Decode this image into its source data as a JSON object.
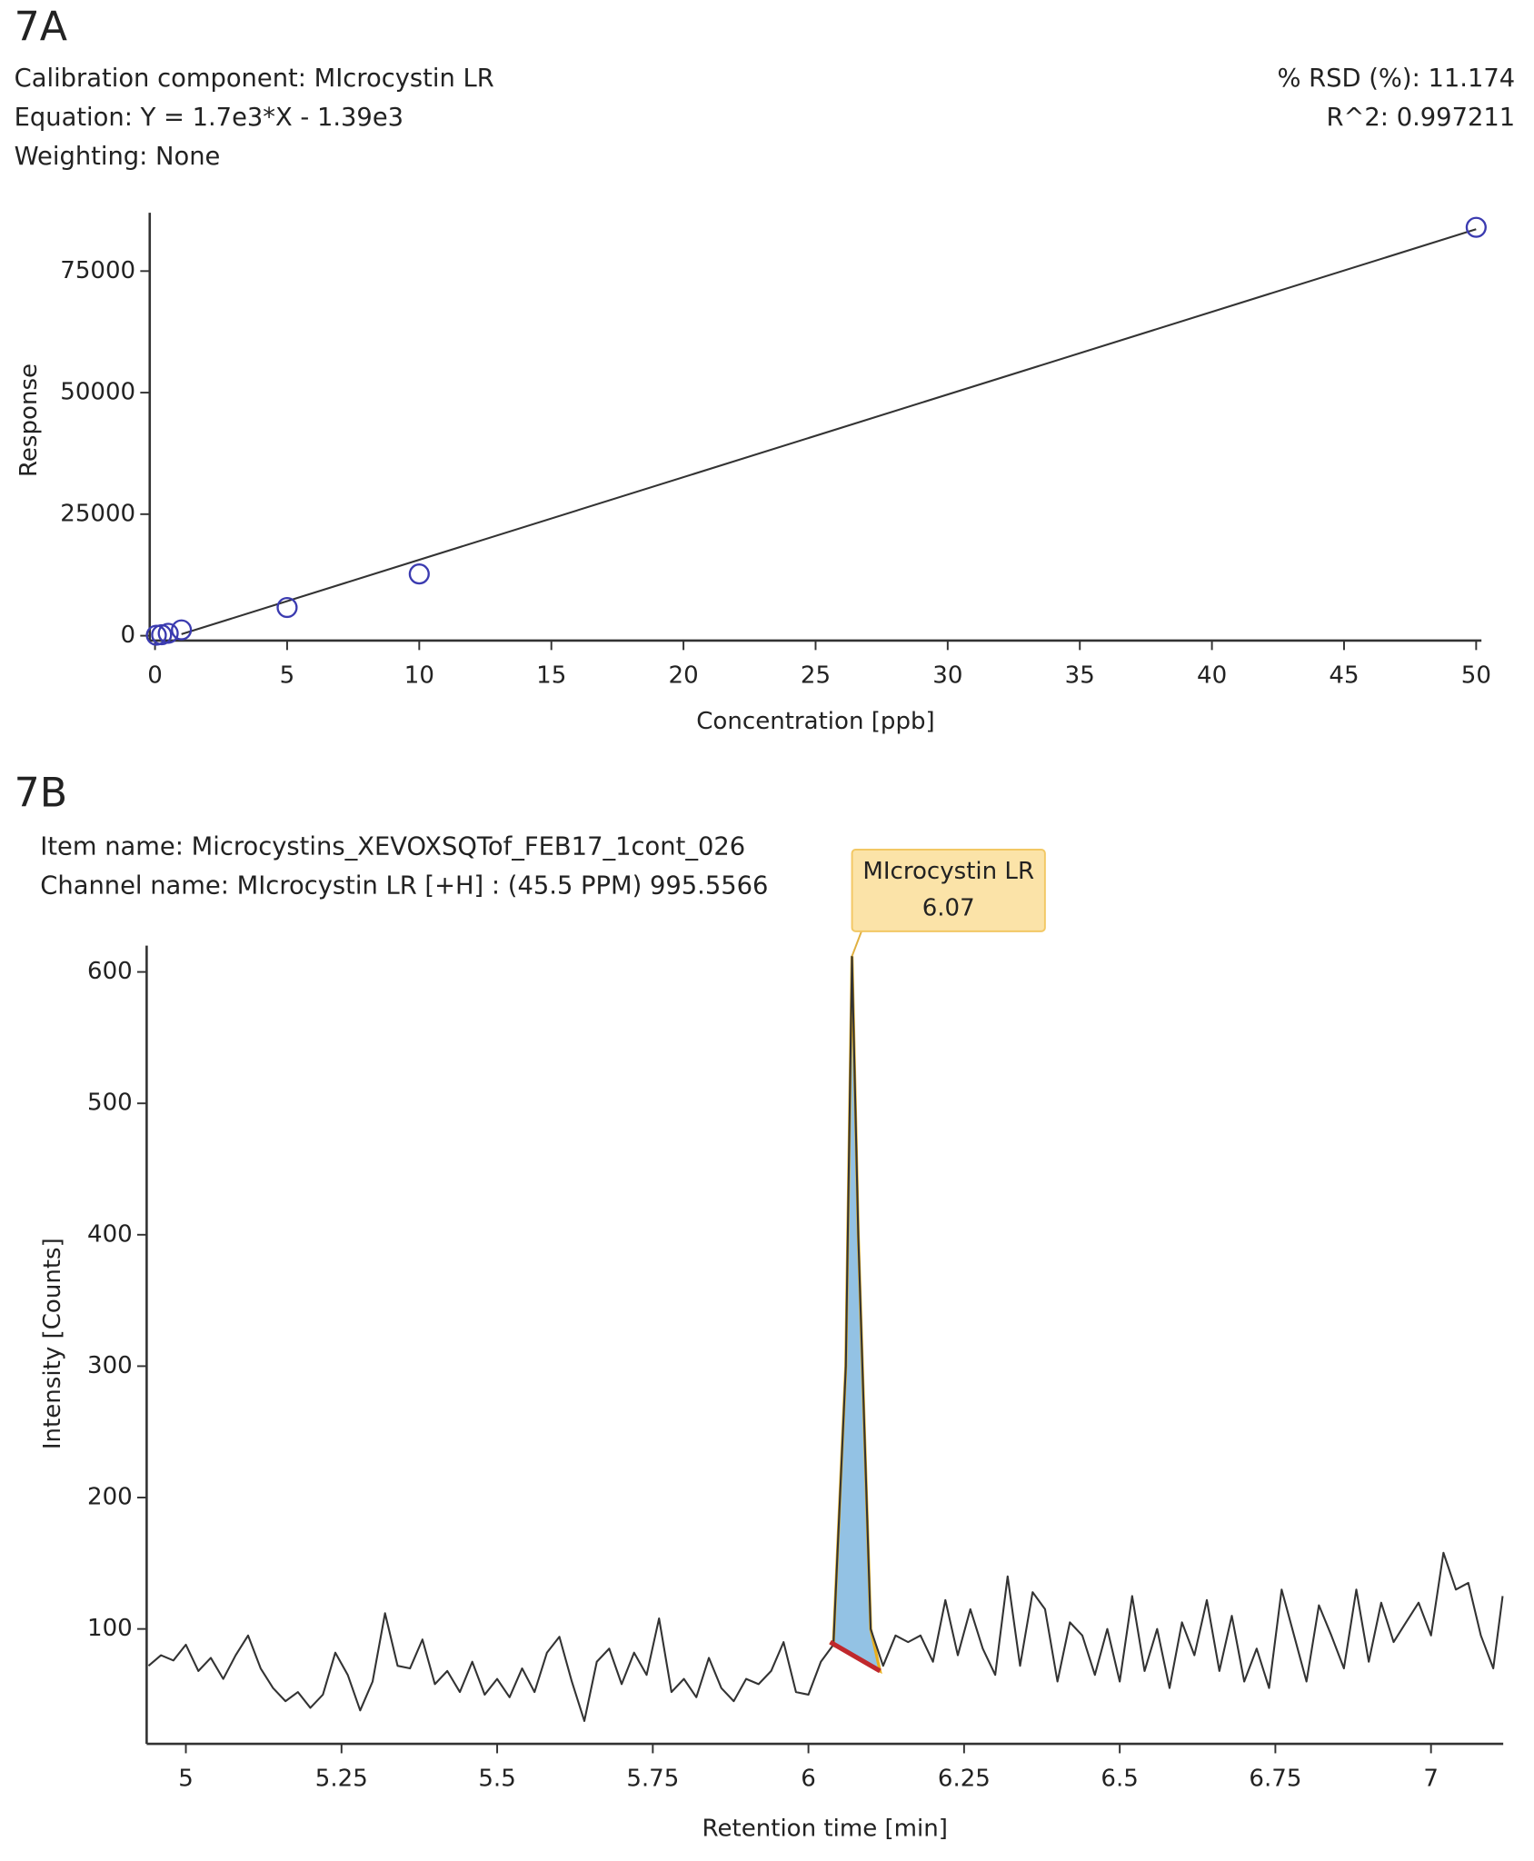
{
  "chart_data": [
    {
      "type": "scatter",
      "panel_label": "7A",
      "header": [
        "Calibration component: MIcrocystin LR",
        "Equation: Y = 1.7e3*X - 1.39e3",
        "Weighting: None"
      ],
      "header_right": [
        "% RSD (%): 11.174",
        "R^2: 0.997211"
      ],
      "x_label": "Concentration [ppb]",
      "y_label": "Response",
      "xlim": [
        -0.2,
        50.2
      ],
      "ylim": [
        -1000,
        87000
      ],
      "xticks": [
        0,
        5,
        10,
        15,
        20,
        25,
        30,
        35,
        40,
        45,
        50
      ],
      "yticks": [
        0,
        25000,
        50000,
        75000
      ],
      "points": {
        "color": "#3b3bb0",
        "x": [
          0.05,
          0.25,
          0.5,
          1,
          5,
          10,
          50
        ],
        "values": [
          100,
          200,
          500,
          1200,
          5800,
          12700,
          84000
        ]
      },
      "fit_line": {
        "color": "#333333",
        "x": [
          1,
          50
        ],
        "values": [
          310,
          83610
        ]
      }
    },
    {
      "type": "line",
      "panel_label": "7B",
      "header": [
        "Item name: Microcystins_XEVOXSQTof_FEB17_1cont_026",
        "Channel name: MIcrocystin LR [+H] : (45.5 PPM) 995.5566"
      ],
      "x_label": "Retention time [min]",
      "y_label": "Intensity [Counts]",
      "xlim": [
        4.937,
        7.116
      ],
      "ylim": [
        12.6,
        620
      ],
      "xticks": [
        5,
        5.25,
        5.5,
        5.75,
        6,
        6.25,
        6.5,
        6.75,
        7
      ],
      "yticks": [
        100,
        200,
        300,
        400,
        500,
        600
      ],
      "series": [
        {
          "color": "#333333",
          "x": [
            4.94,
            4.96,
            4.98,
            5.0,
            5.02,
            5.04,
            5.06,
            5.08,
            5.1,
            5.12,
            5.14,
            5.16,
            5.18,
            5.2,
            5.22,
            5.24,
            5.26,
            5.28,
            5.3,
            5.32,
            5.34,
            5.36,
            5.38,
            5.4,
            5.42,
            5.44,
            5.46,
            5.48,
            5.5,
            5.52,
            5.54,
            5.56,
            5.58,
            5.6,
            5.62,
            5.64,
            5.66,
            5.68,
            5.7,
            5.72,
            5.74,
            5.76,
            5.78,
            5.8,
            5.82,
            5.84,
            5.86,
            5.88,
            5.9,
            5.92,
            5.94,
            5.96,
            5.98,
            6.0,
            6.02,
            6.04,
            6.06,
            6.07,
            6.08,
            6.1,
            6.12,
            6.14,
            6.16,
            6.18,
            6.2,
            6.22,
            6.24,
            6.26,
            6.28,
            6.3,
            6.32,
            6.34,
            6.36,
            6.38,
            6.4,
            6.42,
            6.44,
            6.46,
            6.48,
            6.5,
            6.52,
            6.54,
            6.56,
            6.58,
            6.6,
            6.62,
            6.64,
            6.66,
            6.68,
            6.7,
            6.72,
            6.74,
            6.76,
            6.78,
            6.8,
            6.82,
            6.84,
            6.86,
            6.88,
            6.9,
            6.92,
            6.94,
            6.96,
            6.98,
            7.0,
            7.02,
            7.04,
            7.06,
            7.08,
            7.1,
            7.115
          ],
          "values": [
            72,
            80,
            76,
            88,
            68,
            78,
            62,
            80,
            95,
            70,
            55,
            45,
            52,
            40,
            50,
            82,
            65,
            38,
            60,
            112,
            72,
            70,
            92,
            58,
            68,
            52,
            75,
            50,
            62,
            48,
            70,
            52,
            82,
            94,
            60,
            30,
            75,
            85,
            58,
            82,
            65,
            108,
            52,
            62,
            48,
            78,
            55,
            45,
            62,
            58,
            68,
            90,
            52,
            50,
            75,
            88,
            300,
            612,
            400,
            100,
            72,
            95,
            90,
            95,
            75,
            122,
            80,
            115,
            85,
            65,
            140,
            72,
            128,
            115,
            60,
            105,
            95,
            65,
            100,
            60,
            125,
            68,
            100,
            55,
            105,
            80,
            122,
            68,
            110,
            60,
            85,
            55,
            130,
            95,
            60,
            118,
            95,
            70,
            130,
            75,
            120,
            90,
            105,
            120,
            95,
            158,
            130,
            135,
            95,
            70,
            125
          ]
        }
      ],
      "peak_fill": "#93c2e4",
      "peak_outline": "#e8b020",
      "peak_baseline": {
        "color": "#c0282d",
        "x": [
          6.035,
          6.115
        ],
        "values": [
          90,
          68
        ]
      },
      "annotation": {
        "label": "MIcrocystin LR",
        "x": 6.07,
        "y": 612
      }
    }
  ]
}
